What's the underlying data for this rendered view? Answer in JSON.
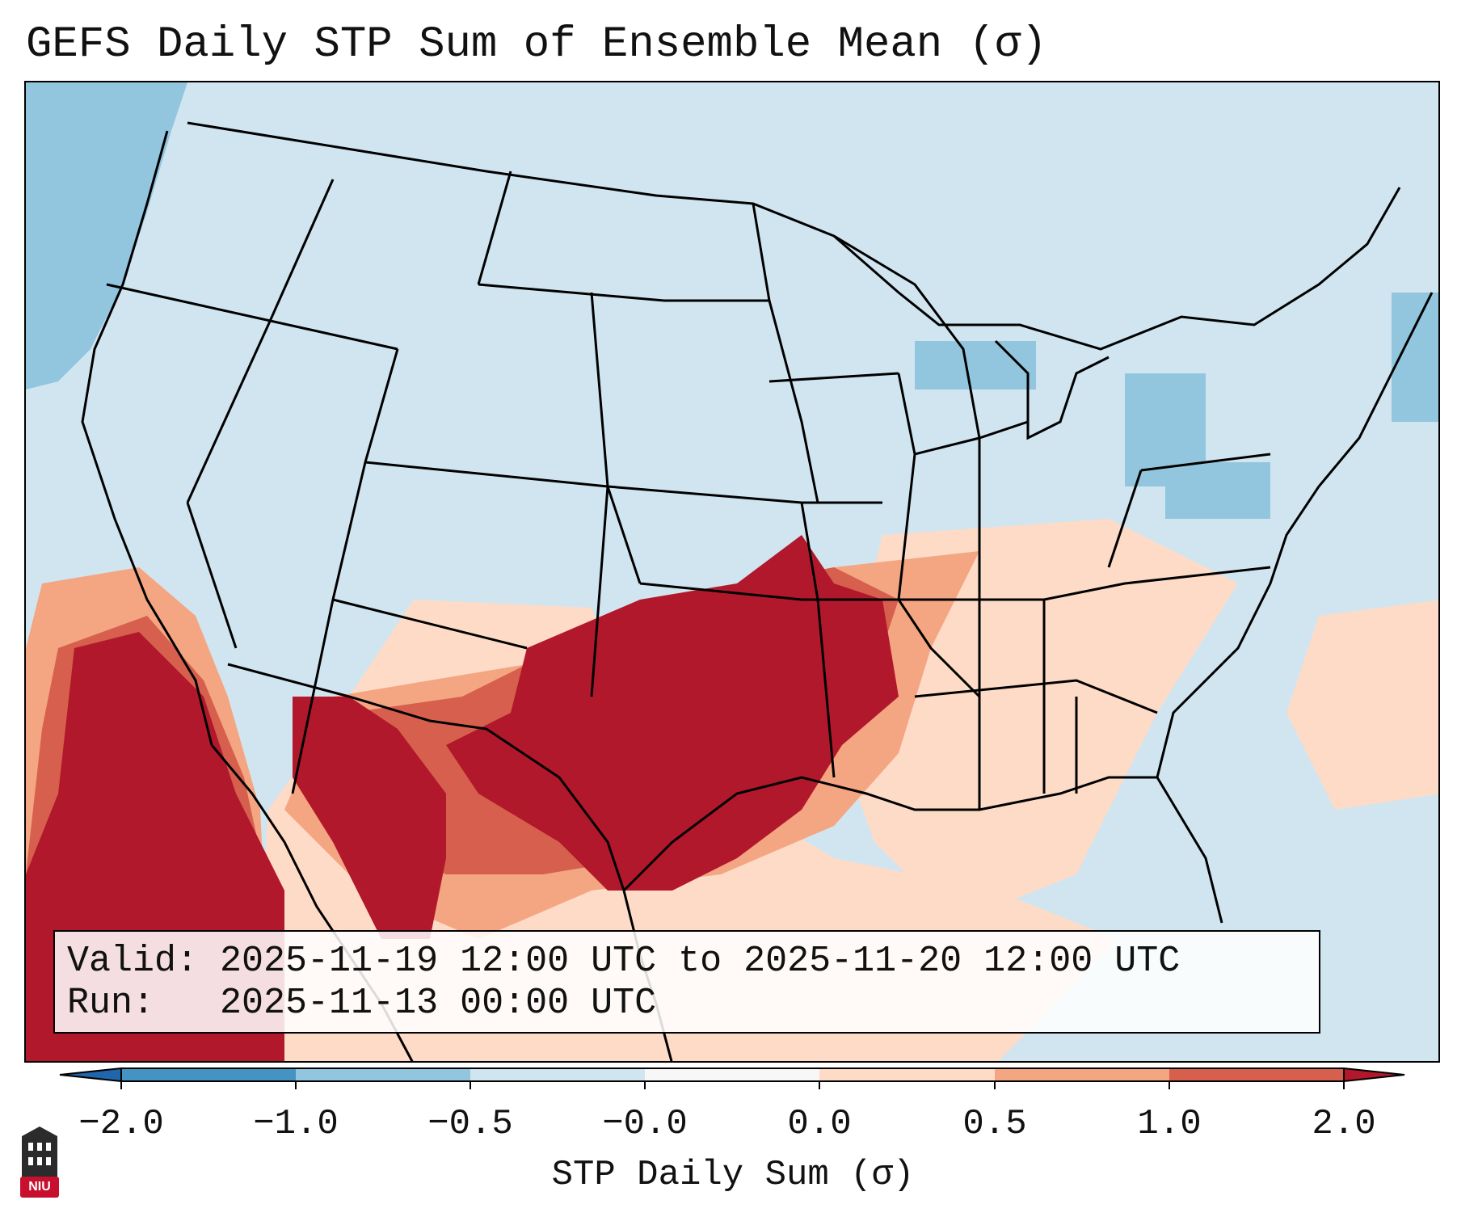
{
  "title": "GEFS Daily STP Sum of Ensemble Mean (σ)",
  "info": {
    "valid_line": "Valid: 2025-11-19 12:00 UTC to 2025-11-20 12:00 UTC",
    "run_line": "Run:   2025-11-13 00:00 UTC"
  },
  "colorbar": {
    "label": "STP Daily Sum (σ)",
    "ticks": [
      "−2.0",
      "−1.0",
      "−0.5",
      "−0.0",
      "0.0",
      "0.5",
      "1.0",
      "2.0"
    ],
    "colors": {
      "under": "#2166ac",
      "bins": [
        "#4393c3",
        "#92c5de",
        "#d1e5f0",
        "#f7f7f7",
        "#fddbc7",
        "#f4a582",
        "#d6604d"
      ],
      "over": "#b2182b"
    }
  },
  "map_colors": {
    "background": "#d1e5f0",
    "neg_light": "#92c5de",
    "pos_light": "#fddbc7",
    "pos_mid": "#f4a582",
    "pos_high": "#d6604d",
    "pos_extreme": "#b2182b"
  },
  "logo": {
    "text": "NIU"
  }
}
